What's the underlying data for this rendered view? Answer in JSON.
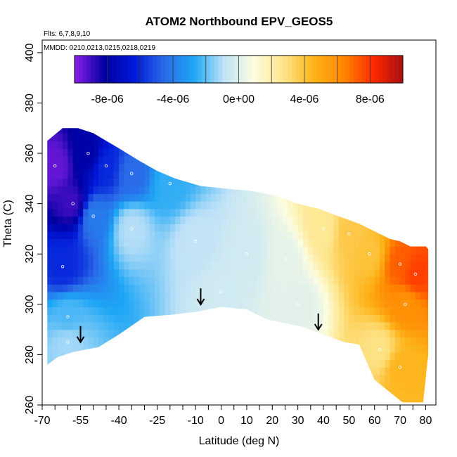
{
  "chart_data": {
    "type": "heatmap",
    "title": "ATOM2 Northbound EPV_GEOS5",
    "annotations": {
      "flights": "Flts: 6,7,8,9,10",
      "dates": "MMDD: 0210,0213,0215,0218,0219"
    },
    "xlabel": "Latitude (deg N)",
    "ylabel": "Theta (C)",
    "xlim": [
      -70,
      84
    ],
    "ylim": [
      260,
      405
    ],
    "xticks": [
      -70,
      -55,
      -40,
      -25,
      -10,
      0,
      10,
      20,
      30,
      40,
      50,
      60,
      70,
      80
    ],
    "xtick_labels": [
      "-70",
      "-55",
      "-40",
      "-25",
      "-10",
      "0",
      "10",
      "20",
      "30",
      "40",
      "50",
      "60",
      "70",
      "80"
    ],
    "xticks_minor": [
      -65,
      -60,
      -50,
      -45,
      -35,
      -30,
      -20,
      -15,
      -5,
      5,
      15,
      25,
      35,
      45,
      55,
      65,
      75
    ],
    "yticks": [
      260,
      280,
      300,
      320,
      340,
      360,
      380,
      400
    ],
    "ytick_labels": [
      "260",
      "280",
      "300",
      "320",
      "340",
      "360",
      "380",
      "400"
    ],
    "colorbar": {
      "vmin": -1e-05,
      "vmax": 1e-05,
      "ticks": [
        -8e-06,
        -4e-06,
        0,
        4e-06,
        8e-06
      ],
      "tick_labels": [
        "-8e-06",
        "-4e-06",
        "0e+00",
        "4e-06",
        "8e-06"
      ],
      "colors": [
        "#8a1fe8",
        "#0000a0",
        "#0018d8",
        "#2a6ae8",
        "#1ea6f5",
        "#bfe2f7",
        "#fcfde0",
        "#fde58a",
        "#fdb41a",
        "#ff8800",
        "#ff2a00",
        "#a80f12"
      ]
    },
    "grid": false,
    "legend": "colorbar-top",
    "top_boundary": [
      [
        -68,
        365
      ],
      [
        -62,
        370
      ],
      [
        -56,
        370
      ],
      [
        -50,
        368
      ],
      [
        -45,
        365
      ],
      [
        -40,
        362
      ],
      [
        -32,
        357
      ],
      [
        -25,
        353
      ],
      [
        -18,
        350
      ],
      [
        -8,
        347
      ],
      [
        2,
        346
      ],
      [
        12,
        345
      ],
      [
        22,
        343
      ],
      [
        30,
        340
      ],
      [
        38,
        338
      ],
      [
        46,
        335
      ],
      [
        54,
        332
      ],
      [
        60,
        329
      ],
      [
        66,
        326
      ],
      [
        70,
        325
      ],
      [
        74,
        323
      ],
      [
        80,
        323
      ],
      [
        81,
        322
      ]
    ],
    "bottom_boundary": [
      [
        81,
        280
      ],
      [
        79,
        261
      ],
      [
        71,
        261
      ],
      [
        60,
        270
      ],
      [
        54,
        284
      ],
      [
        48,
        285
      ],
      [
        40,
        288
      ],
      [
        32,
        291
      ],
      [
        18,
        294
      ],
      [
        10,
        298
      ],
      [
        0,
        299
      ],
      [
        -10,
        297
      ],
      [
        -18,
        296
      ],
      [
        -30,
        295
      ],
      [
        -40,
        288
      ],
      [
        -48,
        283
      ],
      [
        -58,
        281
      ],
      [
        -64,
        279
      ],
      [
        -68,
        276
      ]
    ],
    "field_samples": [
      {
        "lat": -65,
        "theta": 355,
        "epv": -9.5e-06
      },
      {
        "lat": -58,
        "theta": 340,
        "epv": -9e-06
      },
      {
        "lat": -52,
        "theta": 360,
        "epv": -8e-06
      },
      {
        "lat": -45,
        "theta": 355,
        "epv": -6e-06
      },
      {
        "lat": -35,
        "theta": 352,
        "epv": -4.5e-06
      },
      {
        "lat": -20,
        "theta": 348,
        "epv": -2.5e-06
      },
      {
        "lat": -62,
        "theta": 315,
        "epv": -6e-06
      },
      {
        "lat": -50,
        "theta": 335,
        "epv": -4e-06
      },
      {
        "lat": -35,
        "theta": 330,
        "epv": -1e-06
      },
      {
        "lat": -10,
        "theta": 325,
        "epv": -8e-07
      },
      {
        "lat": 10,
        "theta": 320,
        "epv": -4e-07
      },
      {
        "lat": 25,
        "theta": 318,
        "epv": 2e-07
      },
      {
        "lat": 40,
        "theta": 330,
        "epv": 2.5e-06
      },
      {
        "lat": 50,
        "theta": 328,
        "epv": 3.8e-06
      },
      {
        "lat": 58,
        "theta": 320,
        "epv": 4e-06
      },
      {
        "lat": 70,
        "theta": 316,
        "epv": 7.2e-06
      },
      {
        "lat": 76,
        "theta": 312,
        "epv": 7.8e-06
      },
      {
        "lat": 72,
        "theta": 300,
        "epv": 6e-06
      },
      {
        "lat": 70,
        "theta": 275,
        "epv": 4.5e-06
      },
      {
        "lat": 62,
        "theta": 282,
        "epv": 2.8e-06
      },
      {
        "lat": -60,
        "theta": 295,
        "epv": -2.2e-06
      },
      {
        "lat": -60,
        "theta": 285,
        "epv": -1.2e-06
      },
      {
        "lat": 0,
        "theta": 305,
        "epv": -4e-07
      },
      {
        "lat": 30,
        "theta": 300,
        "epv": 1e-07
      }
    ],
    "tropopause_arrows": [
      {
        "lat": -55,
        "theta": 288
      },
      {
        "lat": -8,
        "theta": 303
      },
      {
        "lat": 38,
        "theta": 293
      }
    ]
  }
}
